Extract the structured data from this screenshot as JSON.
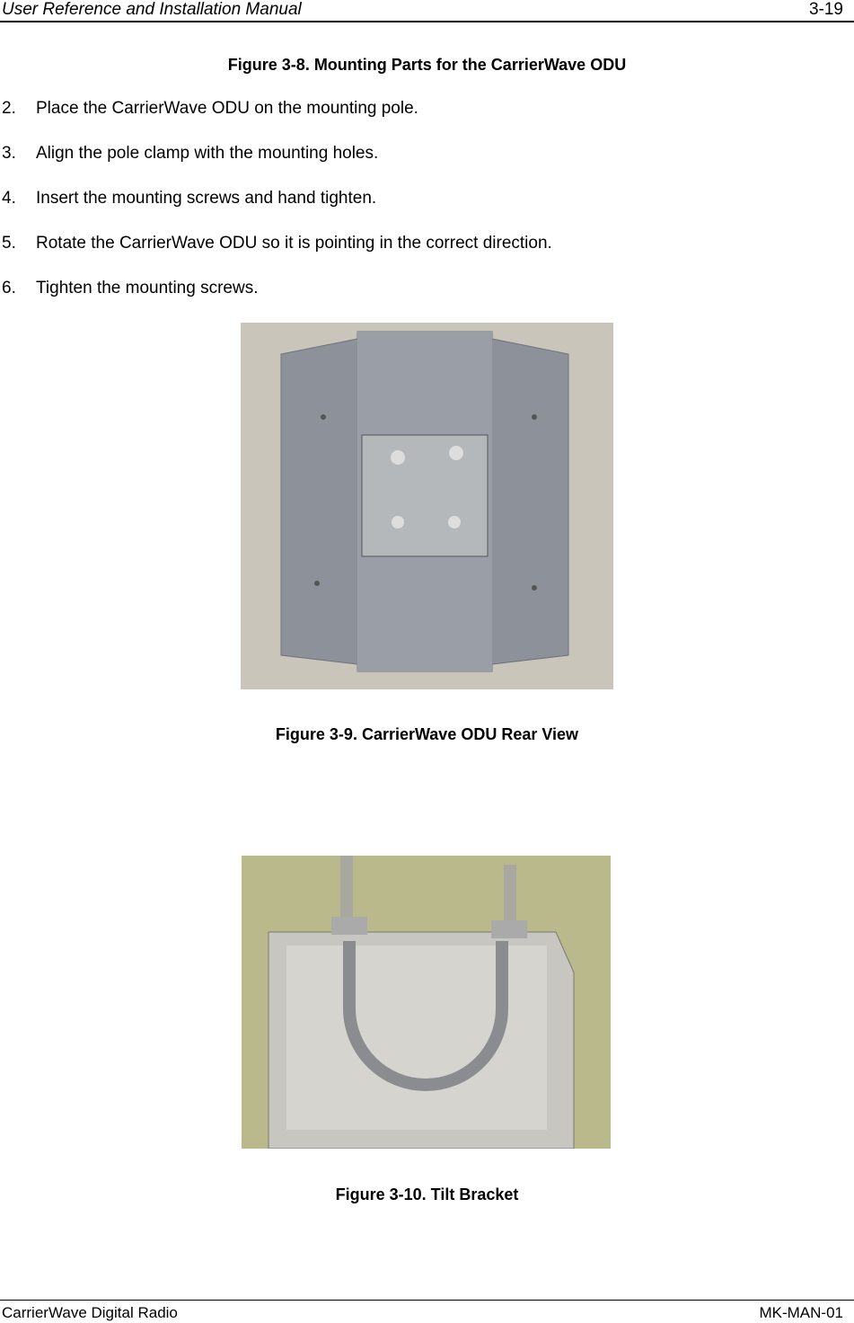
{
  "header": {
    "title": "User Reference and Installation Manual",
    "page": "3-19"
  },
  "captions": [
    "Figure 3-8.  Mounting Parts for the CarrierWave ODU",
    "Figure 3-9.  CarrierWave ODU Rear View",
    "Figure 3-10.  Tilt Bracket"
  ],
  "steps": [
    {
      "number": "2.",
      "text": "Place the CarrierWave ODU on the mounting pole."
    },
    {
      "number": "3.",
      "text": "Align the pole clamp with the mounting holes."
    },
    {
      "number": "4.",
      "text": "Insert the mounting screws and hand tighten."
    },
    {
      "number": "5.",
      "text": "Rotate the CarrierWave ODU so it is pointing in the correct direction."
    },
    {
      "number": "6.",
      "text": "Tighten the mounting screws."
    }
  ],
  "footer": {
    "left": "CarrierWave Digital Radio",
    "right": "MK-MAN-01"
  }
}
